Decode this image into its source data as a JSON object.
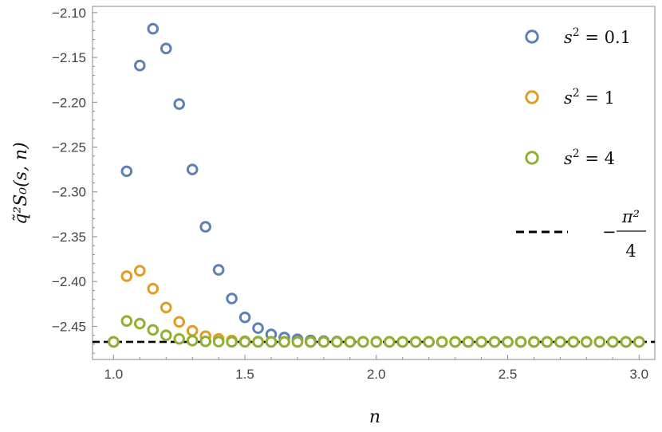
{
  "chart_data": {
    "type": "scatter",
    "xlabel": "n",
    "ylabel": "q̃²S₀(s, n)",
    "xlim": [
      0.92,
      3.06
    ],
    "ylim": [
      -2.487,
      -2.093
    ],
    "xticks": [
      "1.0",
      "1.5",
      "2.0",
      "2.5",
      "3.0"
    ],
    "yticks": [
      "-2.10",
      "-2.15",
      "-2.20",
      "-2.25",
      "-2.30",
      "-2.35",
      "-2.40",
      "-2.45"
    ],
    "grid": false,
    "legend_position": "right",
    "series": [
      {
        "name": "s² = 0.1",
        "label_base": "s",
        "label_exp": "2",
        "label_rest": " = 0.1",
        "color": "#5d81b4",
        "x": [
          1.0,
          1.05,
          1.1,
          1.15,
          1.2,
          1.25,
          1.3,
          1.35,
          1.4,
          1.45,
          1.5,
          1.55,
          1.6,
          1.65,
          1.7,
          1.75,
          1.8,
          1.85,
          1.9,
          1.95,
          2.0,
          2.05,
          2.1,
          2.15,
          2.2,
          2.25,
          2.3,
          2.35,
          2.4,
          2.45,
          2.5,
          2.55,
          2.6,
          2.65,
          2.7,
          2.75,
          2.8,
          2.85,
          2.9,
          2.95,
          3.0
        ],
        "y": [
          -2.4674,
          -2.277,
          -2.159,
          -2.118,
          -2.14,
          -2.202,
          -2.275,
          -2.339,
          -2.387,
          -2.419,
          -2.44,
          -2.452,
          -2.459,
          -2.4625,
          -2.4645,
          -2.4658,
          -2.4665,
          -2.4669,
          -2.4671,
          -2.4672,
          -2.4673,
          -2.4673,
          -2.4674,
          -2.4674,
          -2.4674,
          -2.4674,
          -2.4674,
          -2.4674,
          -2.4674,
          -2.4674,
          -2.4674,
          -2.4674,
          -2.4674,
          -2.4674,
          -2.4674,
          -2.4674,
          -2.4674,
          -2.4674,
          -2.4674,
          -2.4674,
          -2.4674
        ]
      },
      {
        "name": "s² = 1",
        "label_base": "s",
        "label_exp": "2",
        "label_rest": " = 1",
        "color": "#e19c24",
        "x": [
          1.0,
          1.05,
          1.1,
          1.15,
          1.2,
          1.25,
          1.3,
          1.35,
          1.4,
          1.45,
          1.5,
          1.55,
          1.6,
          1.65,
          1.7,
          1.75,
          1.8,
          1.85,
          1.9,
          1.95,
          2.0,
          2.05,
          2.1,
          2.15,
          2.2,
          2.25,
          2.3,
          2.35,
          2.4,
          2.45,
          2.5,
          2.55,
          2.6,
          2.65,
          2.7,
          2.75,
          2.8,
          2.85,
          2.9,
          2.95,
          3.0
        ],
        "y": [
          -2.4674,
          -2.394,
          -2.388,
          -2.408,
          -2.429,
          -2.445,
          -2.455,
          -2.461,
          -2.464,
          -2.4658,
          -2.4666,
          -2.467,
          -2.4672,
          -2.4673,
          -2.4674,
          -2.4674,
          -2.4674,
          -2.4674,
          -2.4674,
          -2.4674,
          -2.4674,
          -2.4674,
          -2.4674,
          -2.4674,
          -2.4674,
          -2.4674,
          -2.4674,
          -2.4674,
          -2.4674,
          -2.4674,
          -2.4674,
          -2.4674,
          -2.4674,
          -2.4674,
          -2.4674,
          -2.4674,
          -2.4674,
          -2.4674,
          -2.4674,
          -2.4674,
          -2.4674
        ]
      },
      {
        "name": "s² = 4",
        "label_base": "s",
        "label_exp": "2",
        "label_rest": " = 4",
        "color": "#8fb032",
        "x": [
          1.0,
          1.05,
          1.1,
          1.15,
          1.2,
          1.25,
          1.3,
          1.35,
          1.4,
          1.45,
          1.5,
          1.55,
          1.6,
          1.65,
          1.7,
          1.75,
          1.8,
          1.85,
          1.9,
          1.95,
          2.0,
          2.05,
          2.1,
          2.15,
          2.2,
          2.25,
          2.3,
          2.35,
          2.4,
          2.45,
          2.5,
          2.55,
          2.6,
          2.65,
          2.7,
          2.75,
          2.8,
          2.85,
          2.9,
          2.95,
          3.0
        ],
        "y": [
          -2.4674,
          -2.444,
          -2.447,
          -2.454,
          -2.46,
          -2.464,
          -2.466,
          -2.4668,
          -2.4671,
          -2.4673,
          -2.4674,
          -2.4674,
          -2.4674,
          -2.4674,
          -2.4674,
          -2.4674,
          -2.4674,
          -2.4674,
          -2.4674,
          -2.4674,
          -2.4674,
          -2.4674,
          -2.4674,
          -2.4674,
          -2.4674,
          -2.4674,
          -2.4674,
          -2.4674,
          -2.4674,
          -2.4674,
          -2.4674,
          -2.4674,
          -2.4674,
          -2.4674,
          -2.4674,
          -2.4674,
          -2.4674,
          -2.4674,
          -2.4674,
          -2.4674,
          -2.4674
        ]
      }
    ],
    "reference_line": {
      "y": -2.4674,
      "color": "#000000",
      "style": "dashed",
      "label_sign": "−",
      "label_numerator": "π²",
      "label_denominator": "4"
    }
  }
}
